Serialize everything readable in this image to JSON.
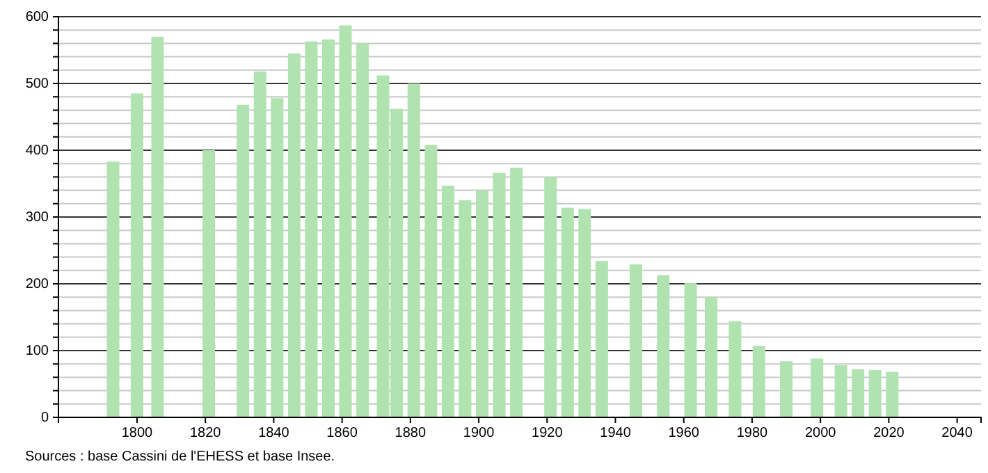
{
  "chart_data": {
    "type": "bar",
    "color": "#b0e3b0",
    "x": [
      1793,
      1800,
      1806,
      1821,
      1831,
      1836,
      1841,
      1846,
      1851,
      1856,
      1861,
      1866,
      1872,
      1876,
      1881,
      1886,
      1891,
      1896,
      1901,
      1906,
      1911,
      1921,
      1926,
      1931,
      1936,
      1946,
      1954,
      1962,
      1968,
      1975,
      1982,
      1990,
      1999,
      2006,
      2011,
      2016,
      2021
    ],
    "values": [
      383,
      485,
      570,
      400,
      468,
      518,
      478,
      545,
      563,
      566,
      587,
      560,
      512,
      462,
      500,
      408,
      347,
      325,
      340,
      366,
      374,
      360,
      314,
      312,
      234,
      229,
      213,
      201,
      180,
      144,
      107,
      84,
      88,
      78,
      72,
      71,
      68
    ],
    "xlim": [
      1777,
      2047
    ],
    "xticks": [
      1800,
      1820,
      1840,
      1860,
      1880,
      1900,
      1920,
      1940,
      1960,
      1980,
      2000,
      2020,
      2040
    ],
    "ylim": [
      0,
      600
    ],
    "yticks": [
      0,
      {
        "value": 20,
        "label": null
      },
      {
        "value": 40,
        "label": null
      },
      {
        "value": 60,
        "label": null
      },
      {
        "value": 80,
        "label": null
      },
      100,
      {
        "value": 120,
        "label": null
      },
      {
        "value": 140,
        "label": null
      },
      {
        "value": 160,
        "label": null
      },
      {
        "value": 180,
        "label": null
      },
      200,
      {
        "value": 220,
        "label": null
      },
      {
        "value": 240,
        "label": null
      },
      {
        "value": 260,
        "label": null
      },
      {
        "value": 280,
        "label": null
      },
      300,
      {
        "value": 320,
        "label": null
      },
      {
        "value": 340,
        "label": null
      },
      {
        "value": 360,
        "label": null
      },
      {
        "value": 380,
        "label": null
      },
      400,
      {
        "value": 420,
        "label": null
      },
      {
        "value": 440,
        "label": null
      },
      {
        "value": 460,
        "label": null
      },
      {
        "value": 480,
        "label": null
      },
      500,
      {
        "value": 520,
        "label": null
      },
      {
        "value": 540,
        "label": null
      },
      {
        "value": 560,
        "label": null
      },
      {
        "value": 580,
        "label": null
      },
      600
    ],
    "grid": "y",
    "annotations": [
      "Sources : base Cassini de l'EHESS et base Insee."
    ]
  }
}
